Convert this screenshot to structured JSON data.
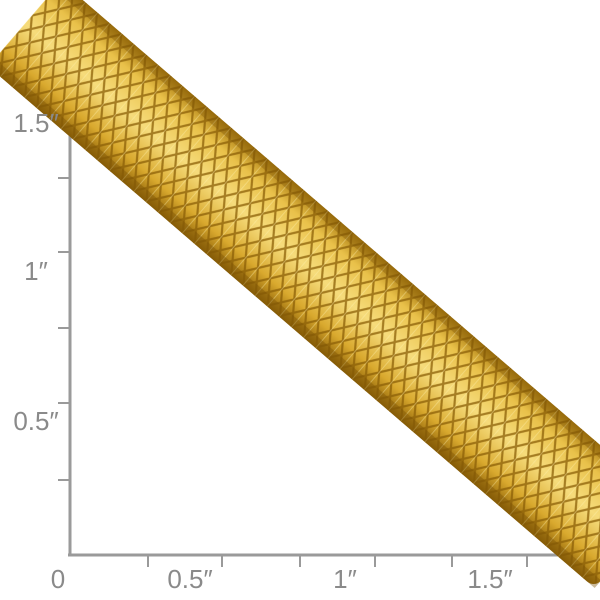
{
  "ruler": {
    "y_labels": [
      "1.5″",
      "1″",
      "0.5″"
    ],
    "x_labels": [
      "0",
      "0.5″",
      "1″",
      "1.5″"
    ]
  }
}
